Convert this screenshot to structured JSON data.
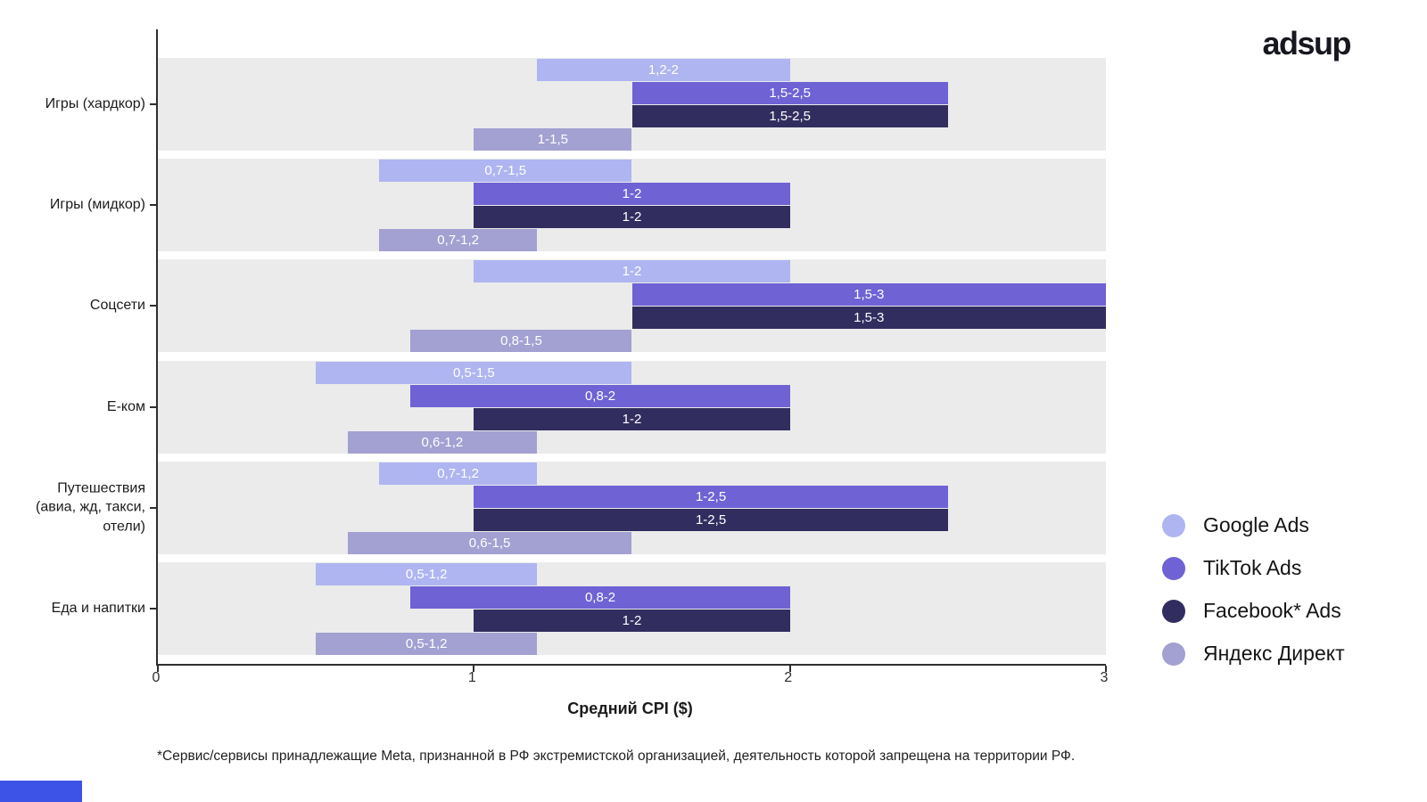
{
  "logo": "adsup",
  "footnote": "*Сервис/сервисы принадлежащие Meta, признанной в РФ экстремистской организацией, деятельность которой запрещена на территории РФ.",
  "chart_data": {
    "type": "bar",
    "orientation": "horizontal",
    "title": "",
    "xlabel": "Средний CPI ($)",
    "ylabel": "",
    "xlim": [
      0,
      3
    ],
    "xticks": [
      "0",
      "1",
      "2",
      "3"
    ],
    "grid": false,
    "legend_position": "right",
    "band_color": "#ebebeb",
    "categories": [
      "Игры (хардкор)",
      "Игры (мидкор)",
      "Соцсети",
      "Е-ком",
      "Путешествия (авиа, жд, такси, отели)",
      "Еда и напитки"
    ],
    "series": [
      {
        "name": "Google Ads",
        "color": "#aeb5f0",
        "ranges": [
          [
            1.2,
            2
          ],
          [
            0.7,
            1.5
          ],
          [
            1,
            2
          ],
          [
            0.5,
            1.5
          ],
          [
            0.7,
            1.2
          ],
          [
            0.5,
            1.2
          ]
        ],
        "labels": [
          "1,2-2",
          "0,7-1,5",
          "1-2",
          "0,5-1,5",
          "0,7-1,2",
          "0,5-1,2"
        ]
      },
      {
        "name": "TikTok Ads",
        "color": "#6f62d4",
        "ranges": [
          [
            1.5,
            2.5
          ],
          [
            1,
            2
          ],
          [
            1.5,
            3
          ],
          [
            0.8,
            2
          ],
          [
            1,
            2.5
          ],
          [
            0.8,
            2
          ]
        ],
        "labels": [
          "1,5-2,5",
          "1-2",
          "1,5-3",
          "0,8-2",
          "1-2,5",
          "0,8-2"
        ]
      },
      {
        "name": "Facebook* Ads",
        "color": "#322d5f",
        "ranges": [
          [
            1.5,
            2.5
          ],
          [
            1,
            2
          ],
          [
            1.5,
            3
          ],
          [
            1,
            2
          ],
          [
            1,
            2.5
          ],
          [
            1,
            2
          ]
        ],
        "labels": [
          "1,5-2,5",
          "1-2",
          "1,5-3",
          "1-2",
          "1-2,5",
          "1-2"
        ]
      },
      {
        "name": "Яндекс Директ",
        "color": "#a3a0d2",
        "ranges": [
          [
            1,
            1.5
          ],
          [
            0.7,
            1.2
          ],
          [
            0.8,
            1.5
          ],
          [
            0.6,
            1.2
          ],
          [
            0.6,
            1.5
          ],
          [
            0.5,
            1.2
          ]
        ],
        "labels": [
          "1-1,5",
          "0,7-1,2",
          "0,8-1,5",
          "0,6-1,2",
          "0,6-1,5",
          "0,5-1,2"
        ]
      }
    ]
  }
}
